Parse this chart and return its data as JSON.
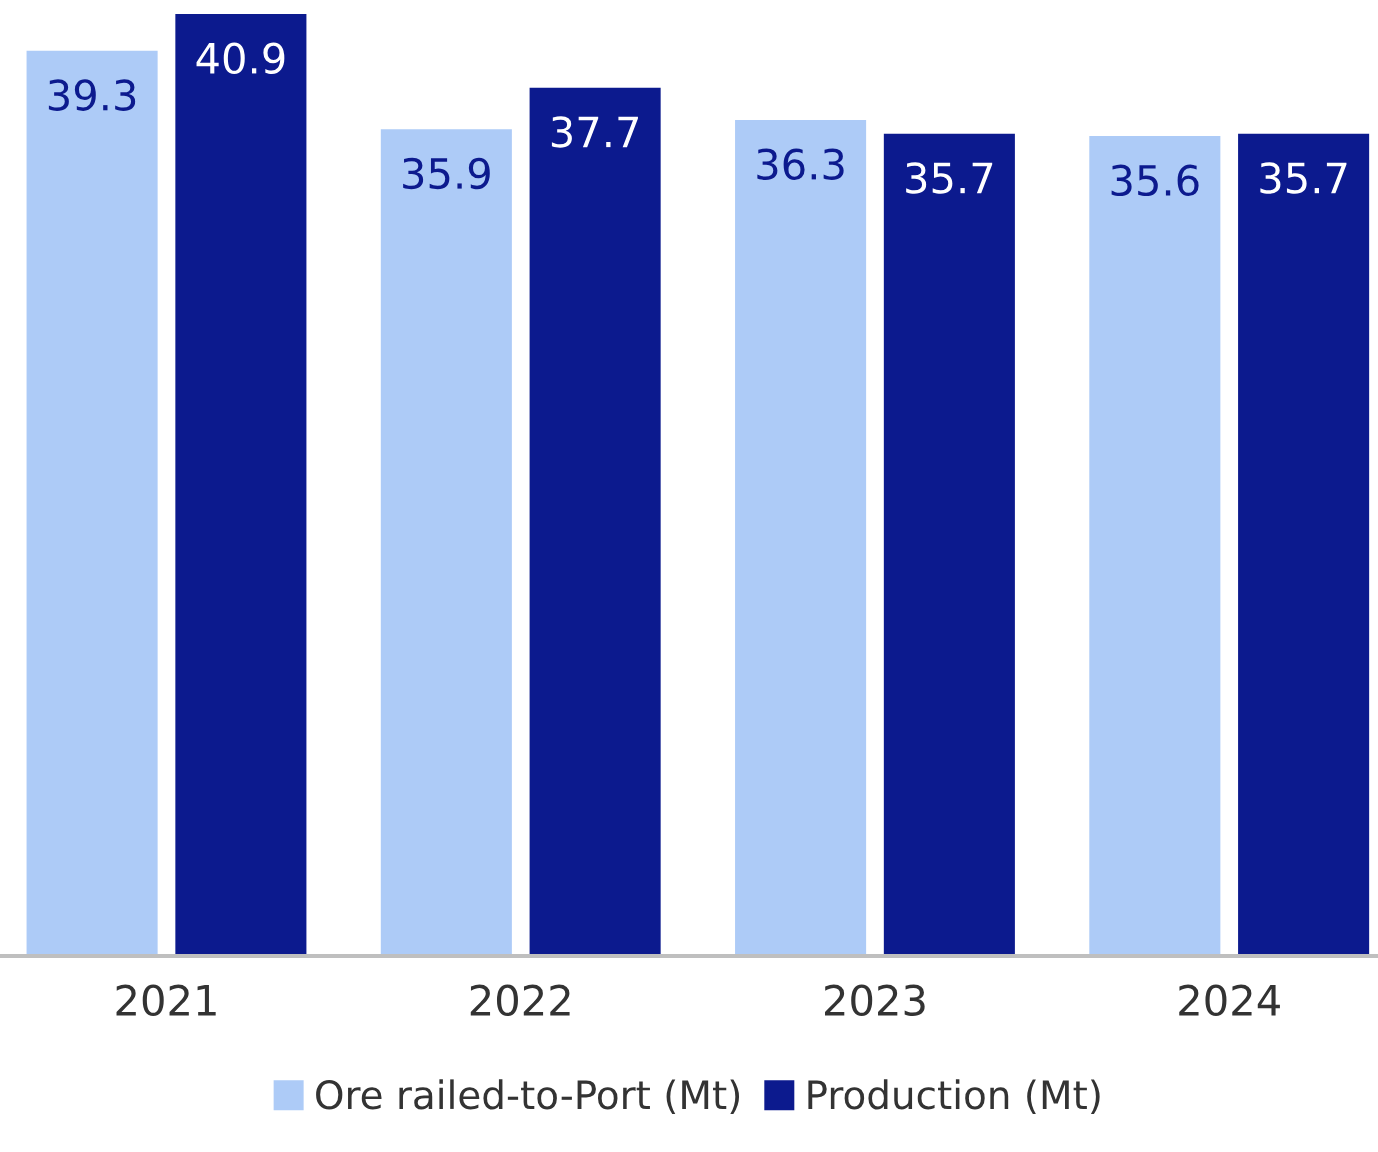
{
  "chart_data": {
    "type": "bar",
    "categories": [
      "2021",
      "2022",
      "2023",
      "2024"
    ],
    "series": [
      {
        "name": "Ore railed-to-Port (Mt)",
        "color": "#adcbf7",
        "values": [
          39.3,
          35.9,
          36.3,
          35.6
        ]
      },
      {
        "name": "Production (Mt)",
        "color": "#0c1a8e",
        "values": [
          40.9,
          37.7,
          35.7,
          35.7
        ]
      }
    ],
    "tick_labels": "x",
    "data_labels": true,
    "legend": "bottom",
    "grid": false
  }
}
